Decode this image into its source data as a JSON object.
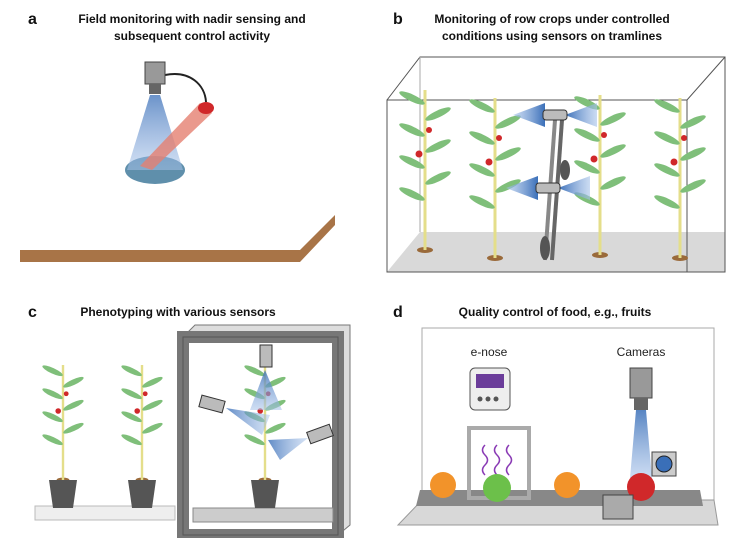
{
  "panels": [
    {
      "letter": "a",
      "title": [
        "Field monitoring with nadir sensing and",
        "subsequent control activity"
      ]
    },
    {
      "letter": "b",
      "title": [
        "Monitoring of row crops under controlled",
        "conditions using sensors on tramlines"
      ]
    },
    {
      "letter": "c",
      "title": [
        "Phenotyping with various sensors"
      ]
    },
    {
      "letter": "d",
      "title": [
        "Quality control of food, e.g., fruits"
      ],
      "labels": [
        "e-nose",
        "Cameras"
      ]
    }
  ]
}
